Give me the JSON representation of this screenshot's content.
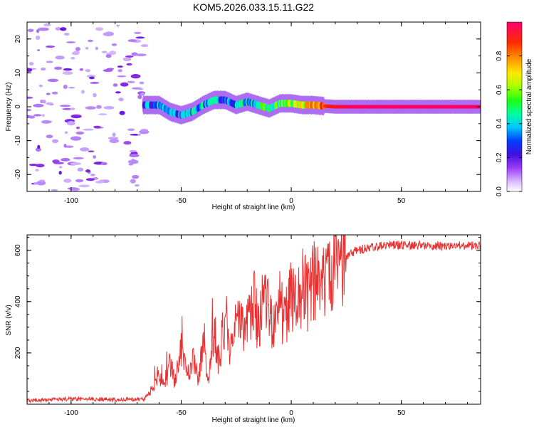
{
  "title": "KOM5.2026.033.15.11.G22",
  "chart_data": [
    {
      "type": "heatmap",
      "name": "spectrogram",
      "xlabel": "Height of straight line (km)",
      "ylabel": "Frequency (Hz)",
      "xlim": [
        -120,
        86
      ],
      "ylim": [
        -25,
        25
      ],
      "xticks": [
        -100,
        -50,
        0,
        50
      ],
      "xtick_labels": [
        "-100",
        "-50",
        "0",
        "50"
      ],
      "yticks": [
        -20,
        -10,
        0,
        10,
        20
      ],
      "ytick_labels": [
        "-20",
        "-10",
        "0",
        "10",
        "20"
      ],
      "colorbar": {
        "label": "Normalized spectral amplitude",
        "range": [
          0,
          1
        ],
        "ticks": [
          0.0,
          0.2,
          0.4,
          0.6,
          0.8
        ],
        "tick_labels": [
          "0.0",
          "0.2",
          "0.4",
          "0.6",
          "0.8"
        ],
        "colormap": [
          "#f5f0ff",
          "#c6a0ff",
          "#8a2be2",
          "#4b0fd8",
          "#0033ff",
          "#00d4ff",
          "#00ff9a",
          "#3cff00",
          "#c8ff00",
          "#ffd000",
          "#ff7a00",
          "#ff1a00",
          "#ff0066"
        ]
      },
      "ridge": {
        "x": [
          -67,
          -60,
          -55,
          -50,
          -45,
          -40,
          -35,
          -30,
          -25,
          -20,
          -15,
          -10,
          -5,
          0,
          5,
          10,
          15,
          20,
          30,
          40,
          50,
          60,
          70,
          86
        ],
        "y": [
          0.5,
          0.5,
          -1.5,
          -2.5,
          -1.5,
          0.5,
          2.0,
          2.0,
          0.5,
          1.5,
          0.5,
          -0.5,
          1.0,
          1.0,
          0.5,
          0.5,
          0.2,
          0.0,
          0.0,
          0.0,
          0.0,
          0.0,
          0.0,
          0.0
        ],
        "amplitude": [
          0.3,
          0.4,
          0.35,
          0.3,
          0.45,
          0.4,
          0.4,
          0.35,
          0.4,
          0.45,
          0.5,
          0.5,
          0.55,
          0.6,
          0.7,
          0.8,
          0.9,
          0.95,
          1.0,
          1.0,
          1.0,
          1.0,
          1.0,
          1.0
        ]
      },
      "noise_region_x": [
        -120,
        -66
      ]
    },
    {
      "type": "line",
      "name": "snr",
      "xlabel": "Height of straight line (km)",
      "ylabel": "SNR (v/v)",
      "xlim": [
        -120,
        86
      ],
      "ylim": [
        0,
        660
      ],
      "xticks": [
        -100,
        -50,
        0,
        50
      ],
      "xtick_labels": [
        "-100",
        "-50",
        "0",
        "50"
      ],
      "yticks": [
        200,
        400,
        600
      ],
      "ytick_labels": [
        "200",
        "400",
        "600"
      ],
      "color": "#e83030",
      "series": [
        {
          "name": "SNR",
          "x": [
            -120,
            -100,
            -80,
            -67,
            -63,
            -60,
            -57,
            -55,
            -53,
            -50,
            -47,
            -45,
            -42,
            -40,
            -38,
            -35,
            -33,
            -30,
            -28,
            -25,
            -22,
            -20,
            -17,
            -15,
            -13,
            -10,
            -8,
            -5,
            -3,
            0,
            3,
            5,
            8,
            10,
            13,
            15,
            18,
            20,
            25,
            30,
            35,
            40,
            50,
            60,
            70,
            86
          ],
          "y": [
            15,
            20,
            18,
            20,
            60,
            110,
            70,
            160,
            90,
            220,
            120,
            180,
            100,
            250,
            80,
            300,
            150,
            350,
            230,
            380,
            280,
            330,
            400,
            300,
            420,
            350,
            300,
            380,
            330,
            420,
            400,
            460,
            420,
            500,
            440,
            510,
            530,
            550,
            580,
            600,
            610,
            615,
            620,
            620,
            615,
            618
          ]
        }
      ]
    }
  ]
}
